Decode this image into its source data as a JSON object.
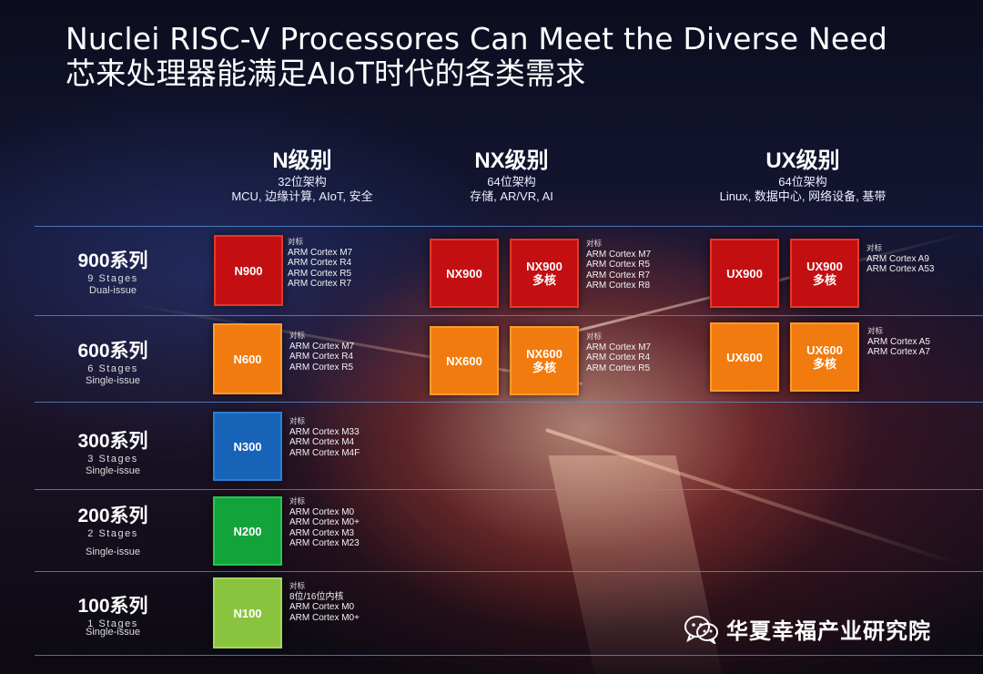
{
  "title": {
    "line1": "Nuclei RISC-V Processores Can Meet the Diverse Need",
    "line2": "芯来处理器能满足AIoT时代的各类需求"
  },
  "columns": [
    {
      "name": "N级别",
      "arch": "32位架构",
      "apps": "MCU, 边缘计算, AIoT, 安全"
    },
    {
      "name": "NX级别",
      "arch": "64位架构",
      "apps": "存储, AR/VR, AI"
    },
    {
      "name": "UX级别",
      "arch": "64位架构",
      "apps": "Linux, 数据中心, 网络设备, 基带"
    }
  ],
  "rows": [
    {
      "series": "900系列",
      "stages": "9 Stages",
      "issue": "Dual-issue"
    },
    {
      "series": "600系列",
      "stages": "6 Stages",
      "issue": "Single-issue"
    },
    {
      "series": "300系列",
      "stages": "3 Stages",
      "issue": "Single-issue"
    },
    {
      "series": "200系列",
      "stages": "2 Stages",
      "issue": "Single-issue"
    },
    {
      "series": "100系列",
      "stages": "1 Stages",
      "issue": "Single-issue"
    }
  ],
  "chips": {
    "n900": "N900",
    "n600": "N600",
    "n300": "N300",
    "n200": "N200",
    "n100": "N100",
    "nx900": "NX900",
    "nx900m_1": "NX900",
    "nx900m_2": "多核",
    "nx600": "NX600",
    "nx600m_1": "NX600",
    "nx600m_2": "多核",
    "ux900": "UX900",
    "ux900m_1": "UX900",
    "ux900m_2": "多核",
    "ux600": "UX600",
    "ux600m_1": "UX600",
    "ux600m_2": "多核"
  },
  "compare_header": "对标",
  "compare": {
    "n900": [
      "ARM Cortex M7",
      "ARM Cortex R4",
      "ARM Cortex R5",
      "ARM Cortex R7"
    ],
    "n600": [
      "ARM Cortex M7",
      "ARM Cortex R4",
      "ARM Cortex R5"
    ],
    "n300": [
      "ARM Cortex M33",
      "ARM Cortex M4",
      "ARM Cortex M4F"
    ],
    "n200": [
      "ARM Cortex M0",
      "ARM Cortex M0+",
      "ARM Cortex M3",
      "ARM Cortex M23"
    ],
    "n100": [
      "8位/16位内核",
      "ARM Cortex M0",
      "ARM Cortex M0+"
    ],
    "nx900": [
      "ARM Cortex M7",
      "ARM Cortex R5",
      "ARM Cortex R7",
      "ARM Cortex R8"
    ],
    "nx600": [
      "ARM Cortex M7",
      "ARM Cortex R4",
      "ARM Cortex R5"
    ],
    "ux900": [
      "ARM Cortex A9",
      "ARM Cortex A53"
    ],
    "ux600": [
      "ARM Cortex A5",
      "ARM Cortex A7"
    ]
  },
  "watermark": {
    "text": "华夏幸福产业研究院",
    "icon": "wechat-icon"
  }
}
